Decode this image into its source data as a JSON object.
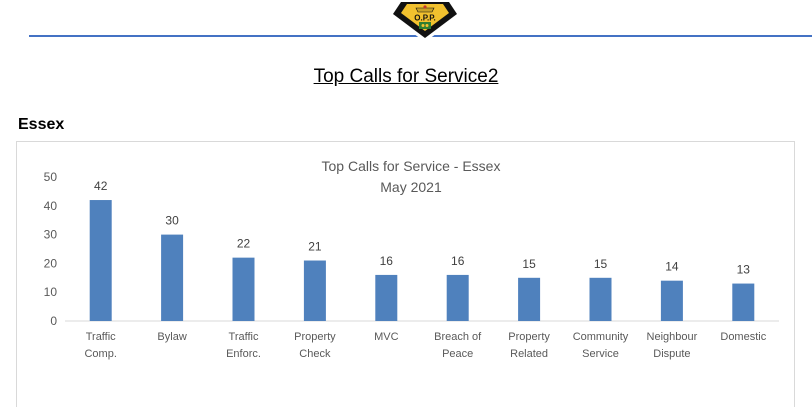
{
  "page": {
    "title": "Top Calls for Service2",
    "section": "Essex",
    "logo_text": "O.P.P.",
    "accent_color": "#4472c4"
  },
  "chart_data": {
    "type": "bar",
    "title": "Top Calls for Service - Essex",
    "subtitle": "May 2021",
    "categories": [
      [
        "Traffic",
        "Comp."
      ],
      [
        "Bylaw"
      ],
      [
        "Traffic",
        "Enforc."
      ],
      [
        "Property",
        "Check"
      ],
      [
        "MVC"
      ],
      [
        "Breach of",
        "Peace"
      ],
      [
        "Property",
        "Related"
      ],
      [
        "Community",
        "Service"
      ],
      [
        "Neighbour",
        "Dispute"
      ],
      [
        "Domestic"
      ]
    ],
    "values": [
      42,
      30,
      22,
      21,
      16,
      16,
      15,
      15,
      14,
      13
    ],
    "ylim": [
      0,
      50
    ],
    "yticks": [
      0,
      10,
      20,
      30,
      40,
      50
    ],
    "grid": false,
    "legend": "none",
    "bar_color": "#4f81bd"
  }
}
